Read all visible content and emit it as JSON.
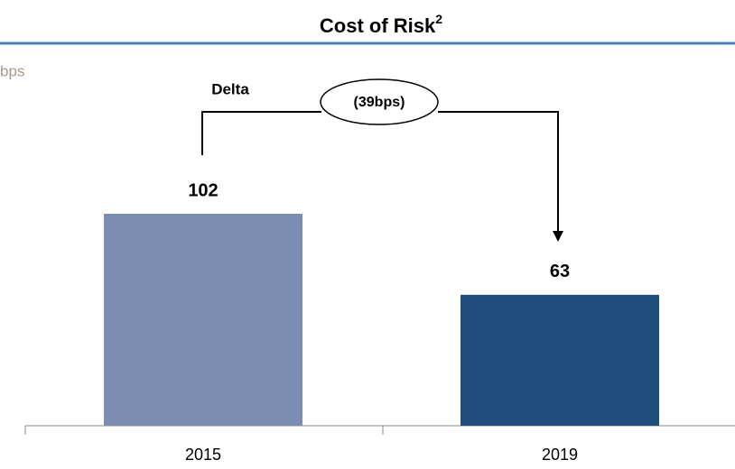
{
  "chart_data": {
    "type": "bar",
    "title": "Cost of Risk",
    "title_footnote": "2",
    "unit_label": "bps",
    "categories": [
      "2015",
      "2019"
    ],
    "values": [
      102,
      63
    ],
    "colors": [
      "#7b8eb1",
      "#1f4e7d"
    ],
    "annotations": {
      "label": "Delta",
      "delta": "(39bps)"
    }
  }
}
